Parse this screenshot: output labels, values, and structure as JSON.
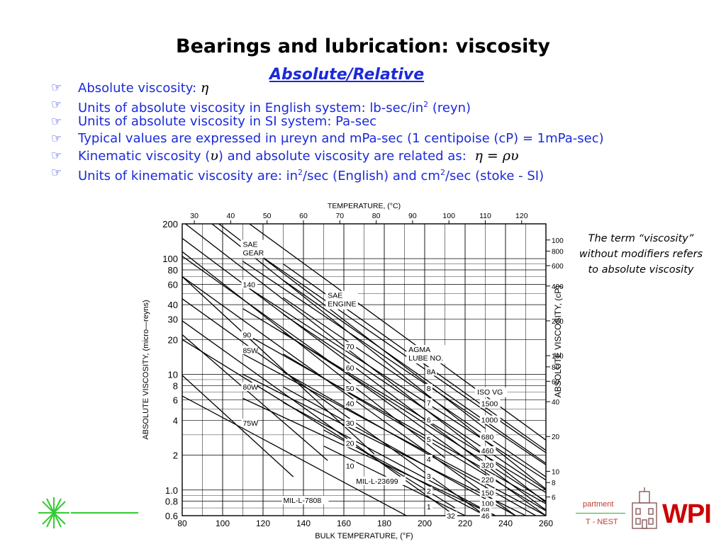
{
  "slide": {
    "title": "Bearings and lubrication: viscosity",
    "subtitle": "Absolute/Relative",
    "bullets": [
      {
        "text": "Absolute viscosity: ",
        "math": "η"
      },
      {
        "text_before": "Units of absolute viscosity in English system: lb-sec/in",
        "sup": "2",
        "text_after": " (reyn)"
      },
      {
        "text": "Units of absolute viscosity in SI system: Pa-sec"
      },
      {
        "text": "Typical values are expressed in μreyn and mPa-sec (1 centipoise (cP) = 1mPa-sec)"
      },
      {
        "text_before": "Kinematic viscosity (",
        "math": "υ",
        "text_after": ") and absolute viscosity are related as: ",
        "formula": "η = ρυ"
      },
      {
        "text_before": "Units of kinematic viscosity are: in",
        "sup1": "2",
        "text_mid": "/sec (English) and cm",
        "sup2": "2",
        "text_after": "/sec (stoke - SI)"
      }
    ],
    "note": "The term “viscosity” without modifiers refers to absolute viscosity",
    "footer": {
      "dept_fragment": "partment",
      "nest_fragment": "T - NEST",
      "logo_text": "WPI"
    }
  },
  "chart_data": {
    "type": "line",
    "xlabel": "BULK TEMPERATURE,  (°F)",
    "top_axis_label": "TEMPERATURE,  (°C)",
    "ylabel_left": "ABSOLUTE  VISCOSITY, (micro—reyns)",
    "ylabel_right": "ABSOLUTE  VISCOSITY, (cP)",
    "x_ticks": [
      80,
      100,
      120,
      140,
      160,
      180,
      200,
      220,
      240,
      260
    ],
    "xlim": [
      80,
      260
    ],
    "top_ticks": [
      30,
      40,
      50,
      60,
      70,
      80,
      90,
      100,
      110,
      120
    ],
    "y_ticks_left": [
      0.6,
      0.8,
      1.0,
      2,
      4,
      6,
      8,
      10,
      20,
      30,
      40,
      60,
      80,
      100,
      200
    ],
    "y_tick_labels_left": [
      "0.6",
      "0.8",
      "1.0",
      "2",
      "4",
      "6",
      "8",
      "10",
      "20",
      "30",
      "40",
      "60",
      "80",
      "100",
      "200"
    ],
    "ylim": [
      0.6,
      200
    ],
    "y_scale": "log",
    "y_ticks_right": [
      6,
      8,
      10,
      20,
      40,
      60,
      80,
      100,
      200,
      400,
      600,
      800,
      1000
    ],
    "grid": true,
    "group_labels": [
      {
        "text": "SAE GEAR",
        "lines": [
          "SAE",
          "GEAR"
        ],
        "x": 110,
        "y": 130
      },
      {
        "text": "SAE ENGINE",
        "lines": [
          "SAE",
          "ENGINE"
        ],
        "x": 152,
        "y": 47
      },
      {
        "text": "AGMA LUBE NO.",
        "lines": [
          "AGMA",
          "LUBE NO."
        ],
        "x": 192,
        "y": 16
      },
      {
        "text": "ISO VG",
        "lines": [
          "ISO VG"
        ],
        "x": 226,
        "y": 6.9
      }
    ],
    "series": [
      {
        "name": "140",
        "x": [
          80,
          230
        ],
        "y": [
          350,
          3.4
        ],
        "lx": 110,
        "ly": 60
      },
      {
        "name": "90",
        "x": [
          80,
          210
        ],
        "y": [
          115,
          1.9
        ],
        "lx": 110,
        "ly": 22
      },
      {
        "name": "85W",
        "x": [
          80,
          175
        ],
        "y": [
          70,
          2.05
        ],
        "lx": 110,
        "ly": 16.2
      },
      {
        "name": "80W",
        "x": [
          80,
          152
        ],
        "y": [
          22,
          1.8
        ],
        "lx": 110,
        "ly": 7.8
      },
      {
        "name": "75W",
        "x": [
          80,
          135
        ],
        "y": [
          9.8,
          1.3
        ],
        "lx": 110,
        "ly": 3.8
      },
      {
        "name": "70",
        "x": [
          80,
          260
        ],
        "y": [
          320,
          1.02
        ],
        "lx": 161,
        "ly": 17.5
      },
      {
        "name": "60",
        "x": [
          80,
          260
        ],
        "y": [
          210,
          0.78
        ],
        "lx": 161,
        "ly": 11.4
      },
      {
        "name": "50",
        "x": [
          80,
          260
        ],
        "y": [
          150,
          0.67
        ],
        "lx": 161,
        "ly": 7.6
      },
      {
        "name": "40",
        "x": [
          80,
          260
        ],
        "y": [
          105,
          0.6
        ],
        "lx": 161,
        "ly": 5.6
      },
      {
        "name": "30",
        "x": [
          80,
          245
        ],
        "y": [
          70,
          0.6
        ],
        "lx": 161,
        "ly": 3.8
      },
      {
        "name": "20",
        "x": [
          80,
          230
        ],
        "y": [
          45,
          0.6
        ],
        "lx": 161,
        "ly": 2.55
      },
      {
        "name": "10",
        "x": [
          80,
          215
        ],
        "y": [
          29,
          0.6
        ],
        "lx": 161,
        "ly": 1.62
      },
      {
        "name": "8A",
        "x": [
          110,
          260
        ],
        "y": [
          220,
          2.7
        ],
        "lx": 201,
        "ly": 10.6
      },
      {
        "name": "8",
        "x": [
          110,
          260
        ],
        "y": [
          135,
          2.1
        ],
        "lx": 201,
        "ly": 7.6
      },
      {
        "name": "7",
        "x": [
          110,
          260
        ],
        "y": [
          95,
          1.65
        ],
        "lx": 201,
        "ly": 5.7
      },
      {
        "name": "6",
        "x": [
          110,
          260
        ],
        "y": [
          60,
          1.22
        ],
        "lx": 201,
        "ly": 4.05
      },
      {
        "name": "5",
        "x": [
          110,
          260
        ],
        "y": [
          37,
          0.95
        ],
        "lx": 201,
        "ly": 2.75
      },
      {
        "name": "4",
        "x": [
          110,
          260
        ],
        "y": [
          23,
          0.76
        ],
        "lx": 201,
        "ly": 1.85
      },
      {
        "name": "3",
        "x": [
          110,
          260
        ],
        "y": [
          15,
          0.6
        ],
        "lx": 201,
        "ly": 1.32
      },
      {
        "name": "2",
        "x": [
          110,
          250
        ],
        "y": [
          10,
          0.6
        ],
        "lx": 201,
        "ly": 0.98
      },
      {
        "name": "1",
        "x": [
          110,
          235
        ],
        "y": [
          6.2,
          0.6
        ],
        "lx": 201,
        "ly": 0.72
      },
      {
        "name": "1500",
        "x": [
          130,
          260
        ],
        "y": [
          90,
          2.2
        ],
        "lx": 228,
        "ly": 5.6
      },
      {
        "name": "1000",
        "x": [
          130,
          260
        ],
        "y": [
          65,
          1.7
        ],
        "lx": 228,
        "ly": 4.05
      },
      {
        "name": "680",
        "x": [
          130,
          260
        ],
        "y": [
          46,
          1.3
        ],
        "lx": 228,
        "ly": 2.9
      },
      {
        "name": "460",
        "x": [
          130,
          260
        ],
        "y": [
          33,
          1.0
        ],
        "lx": 228,
        "ly": 2.2
      },
      {
        "name": "320",
        "x": [
          130,
          260
        ],
        "y": [
          23,
          0.8
        ],
        "lx": 228,
        "ly": 1.65
      },
      {
        "name": "220",
        "x": [
          130,
          260
        ],
        "y": [
          15,
          0.66
        ],
        "lx": 228,
        "ly": 1.23
      },
      {
        "name": "150",
        "x": [
          130,
          255
        ],
        "y": [
          10.5,
          0.6
        ],
        "lx": 228,
        "ly": 0.95
      },
      {
        "name": "100",
        "x": [
          130,
          245
        ],
        "y": [
          7.8,
          0.6
        ],
        "lx": 228,
        "ly": 0.77
      },
      {
        "name": "68",
        "x": [
          130,
          235
        ],
        "y": [
          5.7,
          0.6
        ],
        "lx": 228,
        "ly": 0.67
      },
      {
        "name": "46",
        "x": [
          150,
          230
        ],
        "y": [
          3.3,
          0.6
        ],
        "lx": 228,
        "ly": 0.6
      },
      {
        "name": "32",
        "x": [
          150,
          220
        ],
        "y": [
          2.4,
          0.6
        ],
        "lx": 211,
        "ly": 0.6
      },
      {
        "name": "MIL-L-23699",
        "x": [
          80,
          215
        ],
        "y": [
          20,
          0.7
        ],
        "lx": 166,
        "ly": 1.2
      },
      {
        "name": "MIL-L-7808",
        "x": [
          80,
          195
        ],
        "y": [
          6.5,
          0.55
        ],
        "lx": 130,
        "ly": 0.82
      }
    ]
  }
}
